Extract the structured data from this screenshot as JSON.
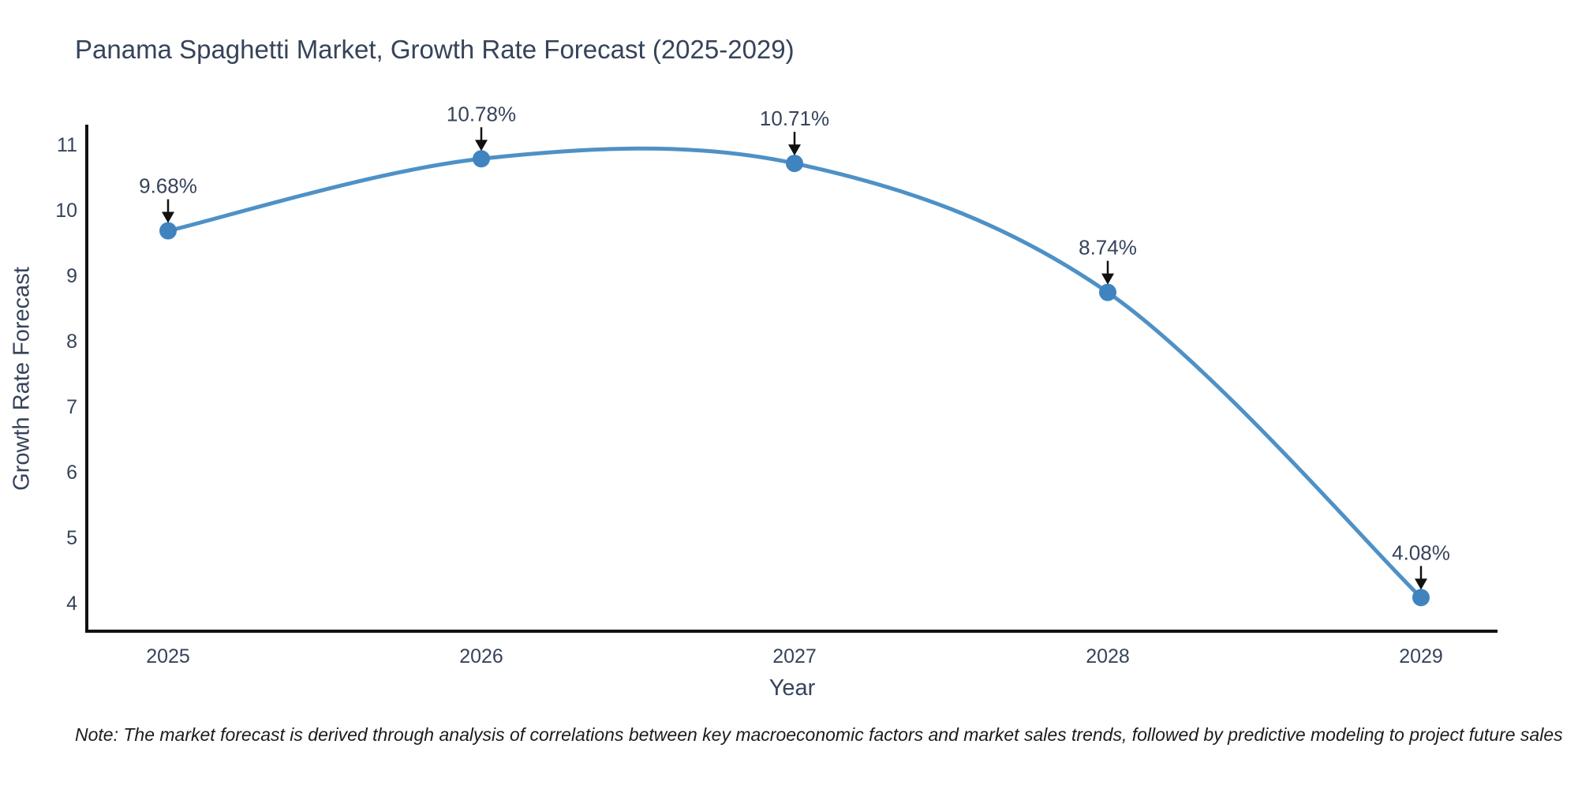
{
  "page": {
    "footnote": "Note: The market forecast is derived through analysis of correlations between key macroeconomic factors and market sales trends, followed by predictive modeling to project future sales"
  },
  "chart_data": {
    "type": "line",
    "title": "Panama Spaghetti Market, Growth Rate Forecast (2025-2029)",
    "xlabel": "Year",
    "ylabel": "Growth Rate Forecast",
    "x": [
      2025,
      2026,
      2027,
      2028,
      2029
    ],
    "values": [
      9.68,
      10.78,
      10.71,
      8.74,
      4.08
    ],
    "point_labels": [
      "9.68%",
      "10.78%",
      "10.71%",
      "8.74%",
      "4.08%"
    ],
    "xtick_labels": [
      "2025",
      "2026",
      "2027",
      "2028",
      "2029"
    ],
    "yticks": [
      4,
      5,
      6,
      7,
      8,
      9,
      10,
      11
    ],
    "xlim": [
      2024.74,
      2029.24
    ],
    "ylim": [
      3.57,
      11.28
    ],
    "grid": false,
    "legend": "none",
    "curve": "smooth",
    "colors": {
      "line": "#4e91c6",
      "marker": "#4084bf",
      "axis": "#111111",
      "arrow": "#111111",
      "text": "#36435a",
      "annotation": "#36435a"
    }
  }
}
